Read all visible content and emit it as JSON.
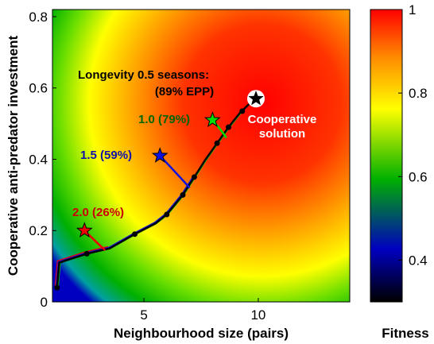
{
  "chart_data": {
    "type": "heatmap",
    "title": "",
    "xlabel": "Neighbourhood size (pairs)",
    "ylabel": "Cooperative anti-predator investment",
    "xlim": [
      1,
      14
    ],
    "ylim": [
      0,
      0.82
    ],
    "xticks": [
      5,
      10
    ],
    "yticks": [
      0,
      0.2,
      0.4,
      0.6,
      0.8
    ],
    "x_tick_labels": [
      "5",
      "10"
    ],
    "y_tick_labels": [
      "0",
      "0.2",
      "0.4",
      "0.6",
      "0.8"
    ],
    "grid": false,
    "colorbar": {
      "label": "Fitness",
      "range": [
        0.3,
        1.0
      ],
      "ticks": [
        0.4,
        0.6,
        0.8,
        1.0
      ],
      "tick_labels": [
        "0.4",
        "0.6",
        "0.8",
        "1"
      ],
      "colormap": [
        "#000000",
        "#0000bb",
        "#00aa00",
        "#ffff00",
        "#ff8800",
        "#ff0000"
      ]
    },
    "fitness_surface": {
      "optimum": [
        9.9,
        0.57
      ],
      "description_colors": {
        "peak": "#ff0000",
        "ridge": "#ffff00",
        "low": "#0000bb"
      }
    },
    "main_path": {
      "color": "#000000",
      "points": [
        [
          1.2,
          0.04
        ],
        [
          1.3,
          0.11
        ],
        [
          2.5,
          0.135
        ],
        [
          3.5,
          0.15
        ],
        [
          4.6,
          0.19
        ],
        [
          5.5,
          0.22
        ],
        [
          6.0,
          0.245
        ],
        [
          6.7,
          0.3
        ],
        [
          7.2,
          0.35
        ],
        [
          7.7,
          0.4
        ],
        [
          8.2,
          0.445
        ],
        [
          8.7,
          0.49
        ],
        [
          9.2,
          0.53
        ],
        [
          9.6,
          0.555
        ],
        [
          9.9,
          0.57
        ]
      ],
      "marker_points": [
        [
          1.2,
          0.04
        ],
        [
          2.5,
          0.135
        ],
        [
          4.6,
          0.19
        ],
        [
          6.0,
          0.245
        ],
        [
          6.7,
          0.3
        ],
        [
          7.2,
          0.35
        ],
        [
          8.2,
          0.445
        ],
        [
          8.7,
          0.49
        ],
        [
          9.3,
          0.535
        ]
      ]
    },
    "series": [
      {
        "name": "0.5 (89%)",
        "color": "#000000",
        "star": [
          9.9,
          0.57
        ],
        "branch_to": [
          9.9,
          0.57
        ]
      },
      {
        "name": "1.0 (79%)",
        "color": "#00dd00",
        "label_color": "#006600",
        "star": [
          8.0,
          0.51
        ],
        "branch_to": [
          8.6,
          0.46
        ]
      },
      {
        "name": "1.5 (59%)",
        "color": "#1010dd",
        "label_color": "#1010aa",
        "star": [
          5.7,
          0.41
        ],
        "branch_to": [
          7.0,
          0.32
        ]
      },
      {
        "name": "2.0 (26%)",
        "color": "#ee0000",
        "label_color": "#cc0000",
        "star": [
          2.4,
          0.2
        ],
        "branch_to": [
          3.3,
          0.145
        ]
      }
    ],
    "annotations": {
      "longevity_line1": "Longevity 0.5 seasons:",
      "longevity_line2": "(89% EPP)",
      "label_1_0": "1.0 (79%)",
      "label_1_5": "1.5 (59%)",
      "label_2_0": "2.0 (26%)",
      "cooperative_line1": "Cooperative",
      "cooperative_line2": "solution"
    }
  }
}
